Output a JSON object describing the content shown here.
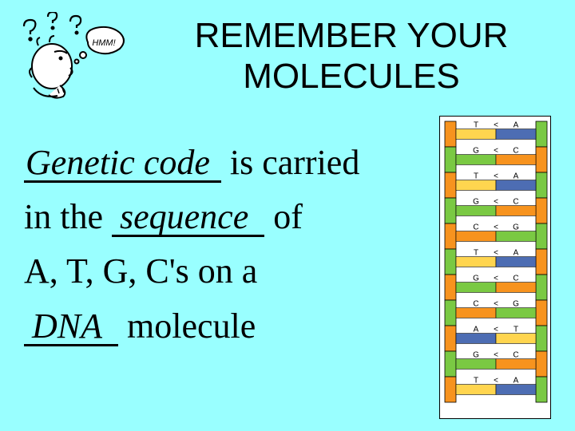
{
  "title_line1": "REMEMBER YOUR",
  "title_line2": "MOLECULES",
  "blank1_answer": "Genetic code",
  "text_after_blank1": " is carried",
  "text_line2_prefix": "in the ",
  "blank2_answer": "sequence",
  "text_line2_suffix": " of",
  "text_line3": "A, T, G, C's on a",
  "blank3_answer": "DNA",
  "text_line4_suffix": " molecule",
  "colors": {
    "background": "#99ffff",
    "text": "#000000",
    "dna_orange": "#f7931e",
    "dna_green": "#7ac943",
    "dna_blue": "#4d6db3",
    "dna_yellow": "#ffd54f",
    "dna_white": "#ffffff"
  },
  "dna": {
    "type": "diagram",
    "rungs": 11,
    "rung_height": 32,
    "backbone_width": 14,
    "strand1_colors": [
      "#f7931e",
      "#7ac943",
      "#f7931e",
      "#7ac943",
      "#f7931e",
      "#7ac943",
      "#f7931e",
      "#7ac943",
      "#f7931e",
      "#7ac943",
      "#f7931e"
    ],
    "strand2_colors": [
      "#7ac943",
      "#f7931e",
      "#7ac943",
      "#f7931e",
      "#7ac943",
      "#f7931e",
      "#7ac943",
      "#f7931e",
      "#7ac943",
      "#f7931e",
      "#7ac943"
    ],
    "base_pairs": [
      [
        "T",
        "A"
      ],
      [
        "G",
        "C"
      ],
      [
        "T",
        "A"
      ],
      [
        "G",
        "C"
      ],
      [
        "C",
        "G"
      ],
      [
        "T",
        "A"
      ],
      [
        "G",
        "C"
      ],
      [
        "C",
        "G"
      ],
      [
        "A",
        "T"
      ],
      [
        "G",
        "C"
      ],
      [
        "T",
        "A"
      ]
    ],
    "base_colors": {
      "A": "#4d6db3",
      "T": "#ffd54f",
      "G": "#7ac943",
      "C": "#f7931e"
    },
    "label_fontsize": 10,
    "label_color": "#000000"
  },
  "thinking_icon": {
    "bubble_text": "HMM!",
    "bubble_fontsize": 11,
    "stroke": "#000000"
  }
}
